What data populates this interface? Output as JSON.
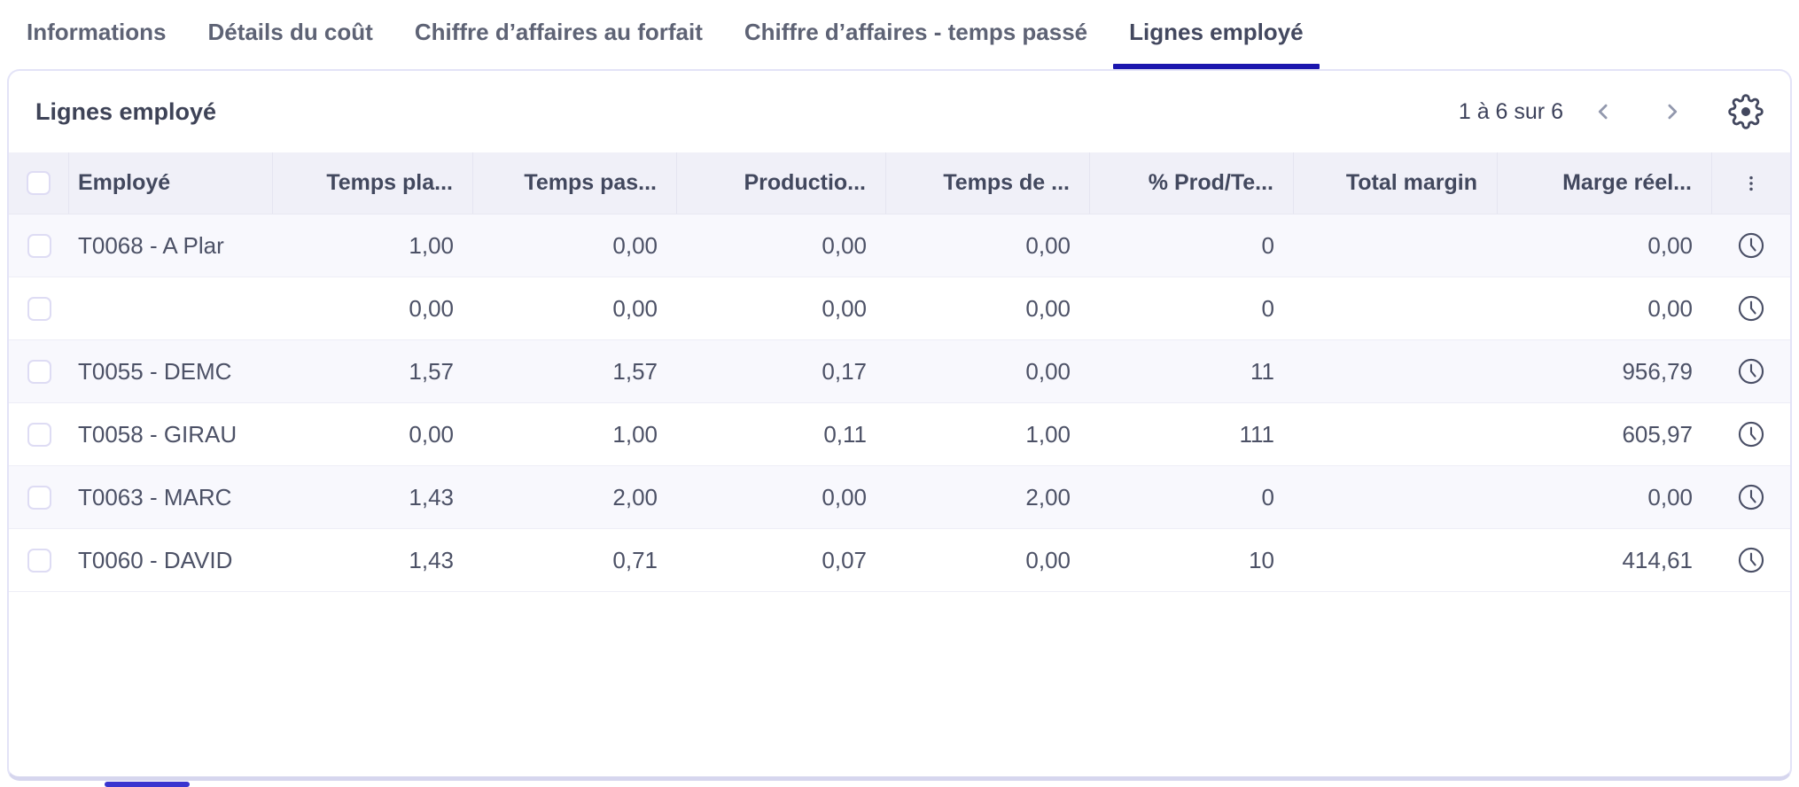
{
  "tabs": {
    "items": [
      {
        "label": "Informations",
        "active": false
      },
      {
        "label": "Détails du coût",
        "active": false
      },
      {
        "label": "Chiffre d’affaires au forfait",
        "active": false
      },
      {
        "label": "Chiffre d’affaires - temps passé",
        "active": false
      },
      {
        "label": "Lignes employé",
        "active": true
      }
    ]
  },
  "panel": {
    "title": "Lignes employé",
    "pagination": {
      "range_label": "1 à 6 sur 6",
      "prev_icon": "chevron-left",
      "next_icon": "chevron-right"
    },
    "settings_icon": "gear"
  },
  "table": {
    "select_all_icon": "checkbox",
    "header_menu_icon": "kebab-vertical",
    "row_action_icon": "clock",
    "columns": [
      {
        "key": "employee",
        "label": "Employé",
        "align": "left"
      },
      {
        "key": "temps_planifie",
        "label": "Temps pla...",
        "align": "right"
      },
      {
        "key": "temps_passe",
        "label": "Temps pas...",
        "align": "right"
      },
      {
        "key": "production",
        "label": "Productio...",
        "align": "right"
      },
      {
        "key": "temps_de",
        "label": "Temps de ...",
        "align": "right"
      },
      {
        "key": "pct_prod",
        "label": "% Prod/Te...",
        "align": "right"
      },
      {
        "key": "total_margin",
        "label": "Total margin",
        "align": "right"
      },
      {
        "key": "marge_reelle",
        "label": "Marge réel...",
        "align": "right"
      }
    ],
    "rows": [
      {
        "employee": "T0068 - A Plar",
        "temps_planifie": "1,00",
        "temps_passe": "0,00",
        "production": "0,00",
        "temps_de": "0,00",
        "pct_prod": "0",
        "total_margin": "",
        "marge_reelle": "0,00"
      },
      {
        "employee": "",
        "temps_planifie": "0,00",
        "temps_passe": "0,00",
        "production": "0,00",
        "temps_de": "0,00",
        "pct_prod": "0",
        "total_margin": "",
        "marge_reelle": "0,00"
      },
      {
        "employee": "T0055 - DEMC",
        "temps_planifie": "1,57",
        "temps_passe": "1,57",
        "production": "0,17",
        "temps_de": "0,00",
        "pct_prod": "11",
        "total_margin": "",
        "marge_reelle": "956,79"
      },
      {
        "employee": "T0058 - GIRAU",
        "temps_planifie": "0,00",
        "temps_passe": "1,00",
        "production": "0,11",
        "temps_de": "1,00",
        "pct_prod": "111",
        "total_margin": "",
        "marge_reelle": "605,97"
      },
      {
        "employee": "T0063 - MARC",
        "temps_planifie": "1,43",
        "temps_passe": "2,00",
        "production": "0,00",
        "temps_de": "2,00",
        "pct_prod": "0",
        "total_margin": "",
        "marge_reelle": "0,00"
      },
      {
        "employee": "T0060 - DAVID",
        "temps_planifie": "1,43",
        "temps_passe": "0,71",
        "production": "0,07",
        "temps_de": "0,00",
        "pct_prod": "10",
        "total_margin": "",
        "marge_reelle": "414,61"
      }
    ]
  },
  "colors": {
    "accent": "#1b16ae",
    "header_bg": "#f0f0f8",
    "row_alt_bg": "#f8f8fd",
    "panel_border": "#e3e3f7",
    "text_dark": "#42485e",
    "scrollbar_thumb": "#3a35cf"
  }
}
